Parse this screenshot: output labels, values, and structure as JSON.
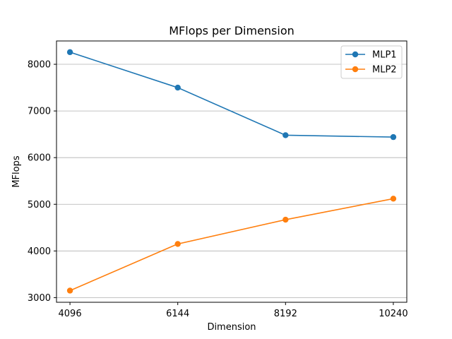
{
  "chart_data": {
    "type": "line",
    "title": "MFlops per Dimension",
    "xlabel": "Dimension",
    "ylabel": "MFlops",
    "x": [
      4096,
      6144,
      8192,
      10240
    ],
    "x_tick_labels": [
      "4096",
      "6144",
      "8192",
      "10240"
    ],
    "xlim": [
      3840,
      10496
    ],
    "ylim": [
      2900,
      8500
    ],
    "y_ticks": [
      3000,
      4000,
      5000,
      6000,
      7000,
      8000
    ],
    "y_tick_labels": [
      "3000",
      "4000",
      "5000",
      "6000",
      "7000",
      "8000"
    ],
    "grid": "horizontal",
    "legend_position": "top-right",
    "series": [
      {
        "name": "MLP1",
        "color": "#1f77b4",
        "values": [
          8260,
          7500,
          6480,
          6440
        ]
      },
      {
        "name": "MLP2",
        "color": "#ff7f0e",
        "values": [
          3150,
          4150,
          4670,
          5120
        ]
      }
    ]
  }
}
